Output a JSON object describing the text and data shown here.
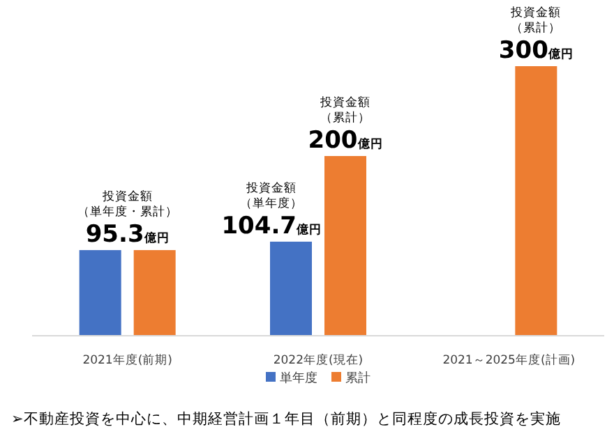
{
  "chart_data": {
    "type": "bar",
    "categories": [
      "2021年度(前期)",
      "2022年度(現在)",
      "2021～2025年度(計画)"
    ],
    "series": [
      {
        "name": "単年度",
        "color": "#4472c4",
        "values": [
          95.3,
          104.7,
          null
        ],
        "value_labels": [
          "95.3億円",
          "104.7億円",
          null
        ]
      },
      {
        "name": "累計",
        "color": "#ed7d31",
        "values": [
          95.3,
          200,
          300
        ],
        "value_labels": [
          null,
          "200億円",
          "300億円"
        ]
      }
    ],
    "annotations": [
      {
        "text": "投資金額（単年度・累計）",
        "x": "2021年度(前期)",
        "y": 95.3
      },
      {
        "text": "投資金額（単年度）",
        "x": "2022年度(現在)",
        "y": 104.7
      },
      {
        "text": "投資金額（累計）",
        "x": "2022年度(現在)",
        "y": 200
      },
      {
        "text": "投資金額（累計）",
        "x": "2021～2025年度(計画)",
        "y": 300
      },
      "➢不動産投資を中心に、中期経営計画１年目（前期）と同程度の成長投資を実施"
    ],
    "legend": "bottom",
    "grid": false
  }
}
